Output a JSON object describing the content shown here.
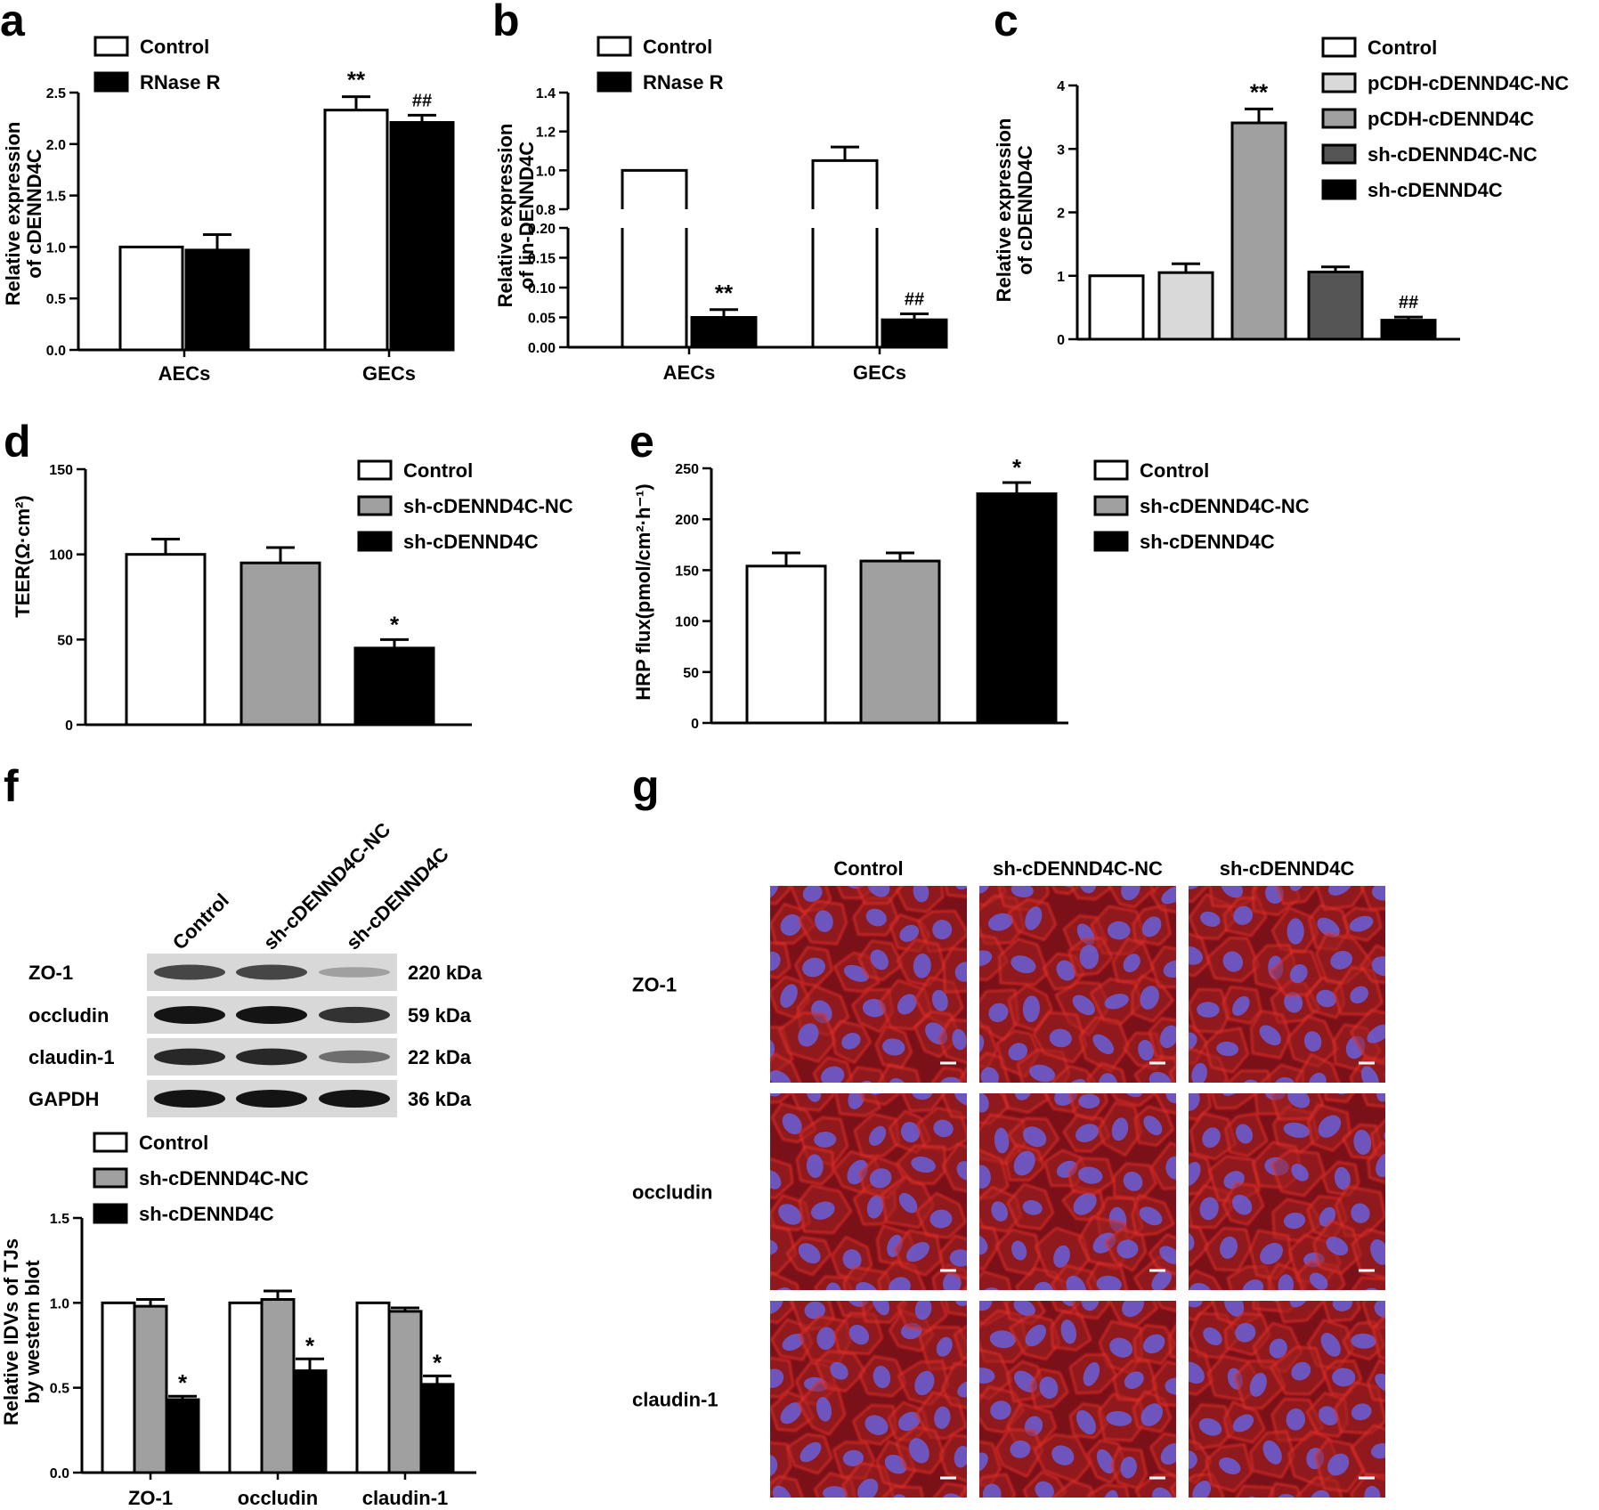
{
  "colors": {
    "control": "#ffffff",
    "rnase": "#000000",
    "pcdh_nc": "#d9d9d9",
    "pcdh": "#a0a0a0",
    "sh_nc": "#555555",
    "sh": "#000000",
    "sh_nc_grey": "#a0a0a0",
    "micro_bg": "#7a1018",
    "membrane": "#e8302a",
    "nucleus": "#6a5cd0"
  },
  "chart_data": [
    {
      "panel": "a",
      "type": "bar",
      "title": "",
      "xlabel": "",
      "ylabel": "Relative expression of cDENND4C",
      "ylabel_lines": [
        "Relative expression",
        "of cDENND4C"
      ],
      "ylim": [
        0,
        2.5
      ],
      "yticks": [
        0.0,
        0.5,
        1.0,
        1.5,
        2.0,
        2.5
      ],
      "tick_format": 1,
      "categories": [
        "AECs",
        "GECs"
      ],
      "legend": "top-left",
      "series": [
        {
          "name": "Control",
          "values": [
            1.0,
            2.33
          ],
          "errors": [
            0.0,
            0.13
          ],
          "sig": [
            "",
            "**"
          ]
        },
        {
          "name": "RNase R",
          "values": [
            0.97,
            2.21
          ],
          "errors": [
            0.15,
            0.07
          ],
          "sig": [
            "",
            "##"
          ]
        }
      ]
    },
    {
      "panel": "b",
      "type": "bar",
      "title": "",
      "xlabel": "",
      "ylabel": "Relative expression of lin-DENND4C",
      "ylabel_lines": [
        "Relative expression",
        "of lin-DENND4C"
      ],
      "broken_axis": {
        "lower": [
          0,
          0.2
        ],
        "upper": [
          0.8,
          1.4
        ]
      },
      "yticks_lower": [
        0.0,
        0.05,
        0.1,
        0.15,
        0.2
      ],
      "yticks_upper": [
        0.8,
        1.0,
        1.2,
        1.4
      ],
      "categories": [
        "AECs",
        "GECs"
      ],
      "legend": "top-left",
      "series": [
        {
          "name": "Control",
          "values": [
            1.0,
            1.05
          ],
          "errors": [
            0.0,
            0.07
          ],
          "sig": [
            "",
            ""
          ]
        },
        {
          "name": "RNase R",
          "values": [
            0.05,
            0.046
          ],
          "errors": [
            0.013,
            0.01
          ],
          "sig": [
            "**",
            "##"
          ]
        }
      ]
    },
    {
      "panel": "c",
      "type": "bar",
      "title": "",
      "xlabel": "",
      "ylabel": "Relative expression of cDENND4C",
      "ylabel_lines": [
        "Relative expression",
        "of cDENND4C"
      ],
      "ylim": [
        0,
        4
      ],
      "yticks": [
        0,
        1,
        2,
        3,
        4
      ],
      "tick_format": 0,
      "legend": "right",
      "series": [
        {
          "name": "Control",
          "value": 1.0,
          "error": 0.0,
          "sig": ""
        },
        {
          "name": "pCDH-cDENND4C-NC",
          "value": 1.05,
          "error": 0.14,
          "sig": ""
        },
        {
          "name": "pCDH-cDENND4C",
          "value": 3.41,
          "error": 0.22,
          "sig": "**"
        },
        {
          "name": "sh-cDENND4C-NC",
          "value": 1.06,
          "error": 0.08,
          "sig": ""
        },
        {
          "name": "sh-cDENND4C",
          "value": 0.3,
          "error": 0.05,
          "sig": "##"
        }
      ]
    },
    {
      "panel": "d",
      "type": "bar",
      "title": "",
      "xlabel": "",
      "ylabel": "TEER(Ω·cm²)",
      "ylim": [
        0,
        150
      ],
      "yticks": [
        0,
        50,
        100,
        150
      ],
      "tick_format": 0,
      "legend": "right",
      "series": [
        {
          "name": "Control",
          "value": 100,
          "error": 9,
          "sig": ""
        },
        {
          "name": "sh-cDENND4C-NC",
          "value": 95,
          "error": 9,
          "sig": ""
        },
        {
          "name": "sh-cDENND4C",
          "value": 45,
          "error": 5,
          "sig": "*"
        }
      ]
    },
    {
      "panel": "e",
      "type": "bar",
      "title": "",
      "xlabel": "",
      "ylabel": "HRP flux(pmol/cm²·h⁻¹)",
      "ylim": [
        0,
        250
      ],
      "yticks": [
        0,
        50,
        100,
        150,
        200,
        250
      ],
      "tick_format": 0,
      "legend": "right",
      "series": [
        {
          "name": "Control",
          "value": 154,
          "error": 13,
          "sig": ""
        },
        {
          "name": "sh-cDENND4C-NC",
          "value": 159,
          "error": 8,
          "sig": ""
        },
        {
          "name": "sh-cDENND4C",
          "value": 225,
          "error": 11,
          "sig": "*"
        }
      ]
    },
    {
      "panel": "f",
      "type": "bar",
      "title": "",
      "xlabel": "",
      "ylabel": "Relative IDVs of TJs by western blot",
      "ylabel_lines": [
        "Relative IDVs of TJs",
        "by western blot"
      ],
      "ylim": [
        0,
        1.5
      ],
      "yticks": [
        0.0,
        0.5,
        1.0,
        1.5
      ],
      "tick_format": 1,
      "categories": [
        "ZO-1",
        "occludin",
        "claudin-1"
      ],
      "legend": "top-left",
      "series": [
        {
          "name": "Control",
          "values": [
            1.0,
            1.0,
            1.0
          ],
          "errors": [
            0,
            0,
            0
          ],
          "sig": [
            "",
            "",
            ""
          ]
        },
        {
          "name": "sh-cDENND4C-NC",
          "values": [
            0.98,
            1.02,
            0.95
          ],
          "errors": [
            0.04,
            0.05,
            0.02
          ],
          "sig": [
            "",
            "",
            ""
          ]
        },
        {
          "name": "sh-cDENND4C",
          "values": [
            0.43,
            0.6,
            0.52
          ],
          "errors": [
            0.02,
            0.07,
            0.05
          ],
          "sig": [
            "*",
            "*",
            "*"
          ]
        }
      ]
    }
  ],
  "panel_labels": {
    "a": "a",
    "b": "b",
    "c": "c",
    "d": "d",
    "e": "e",
    "f": "f",
    "g": "g"
  },
  "western_blot": {
    "lanes": [
      "Control",
      "sh-cDENND4C-NC",
      "sh-cDENND4C"
    ],
    "rows": [
      {
        "protein": "ZO-1",
        "size": "220 kDa",
        "intensity": [
          0.75,
          0.75,
          0.3
        ]
      },
      {
        "protein": "occludin",
        "size": "59 kDa",
        "intensity": [
          1.0,
          1.0,
          0.85
        ]
      },
      {
        "protein": "claudin-1",
        "size": "22 kDa",
        "intensity": [
          0.9,
          0.9,
          0.55
        ]
      },
      {
        "protein": "GAPDH",
        "size": "36 kDa",
        "intensity": [
          1.0,
          1.0,
          1.0
        ]
      }
    ]
  },
  "micrographs": {
    "columns": [
      "Control",
      "sh-cDENND4C-NC",
      "sh-cDENND4C"
    ],
    "rows": [
      "ZO-1",
      "occludin",
      "claudin-1"
    ]
  }
}
